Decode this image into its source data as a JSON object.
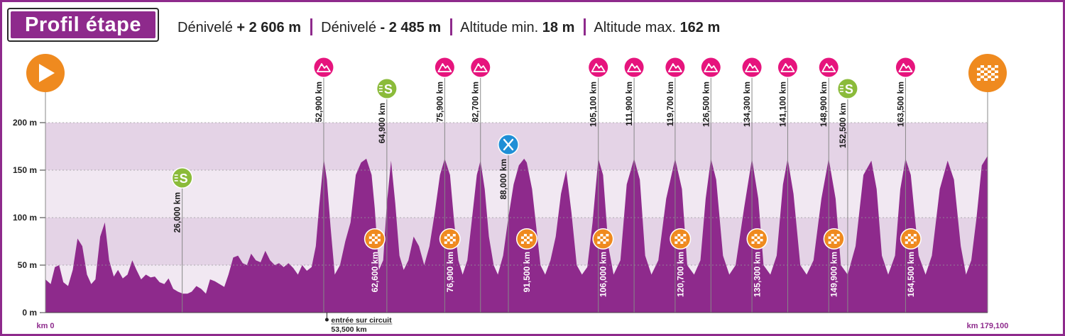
{
  "header": {
    "title": "Profil étape",
    "stats": [
      {
        "label": "Dénivelé",
        "value": "+ 2 606 m"
      },
      {
        "label": "Dénivelé",
        "value": "- 2 485 m"
      },
      {
        "label": "Altitude min.",
        "value": "18 m"
      },
      {
        "label": "Altitude max.",
        "value": "162 m"
      }
    ]
  },
  "colors": {
    "profile": "#8e2a8c",
    "band_dark": "#e4d3e6",
    "band_light": "#f1e8f2",
    "climb_marker": "#e6147d",
    "sprint_marker": "#8bbb3a",
    "finish_marker": "#ef8a1f",
    "feed_marker": "#1f8fd6"
  },
  "chart_data": {
    "type": "area",
    "x_unit": "km",
    "y_unit": "m",
    "xlim": [
      0,
      179.1
    ],
    "ylim": [
      0,
      200
    ],
    "yticks": [
      {
        "value": 0,
        "label": "0 m"
      },
      {
        "value": 50,
        "label": "50 m"
      },
      {
        "value": 100,
        "label": "100 m"
      },
      {
        "value": 150,
        "label": "150 m"
      },
      {
        "value": 200,
        "label": "200 m"
      }
    ],
    "start_label": "km 0",
    "end_label": "km 179,100",
    "circuit_entry": {
      "km": 53.5,
      "label": "entrée sur circuit",
      "km_label": "53,500 km"
    },
    "profile": [
      [
        0,
        35
      ],
      [
        1,
        30
      ],
      [
        1.8,
        48
      ],
      [
        2.6,
        50
      ],
      [
        3.4,
        32
      ],
      [
        4.3,
        28
      ],
      [
        5.2,
        45
      ],
      [
        6.1,
        78
      ],
      [
        7,
        70
      ],
      [
        7.9,
        40
      ],
      [
        8.7,
        30
      ],
      [
        9.5,
        35
      ],
      [
        10.4,
        80
      ],
      [
        11.3,
        95
      ],
      [
        12.1,
        55
      ],
      [
        13,
        38
      ],
      [
        13.8,
        45
      ],
      [
        14.7,
        36
      ],
      [
        15.6,
        40
      ],
      [
        16.5,
        55
      ],
      [
        17.3,
        45
      ],
      [
        18.2,
        35
      ],
      [
        19.1,
        40
      ],
      [
        20,
        37
      ],
      [
        20.8,
        38
      ],
      [
        21.7,
        32
      ],
      [
        22.6,
        30
      ],
      [
        23.4,
        36
      ],
      [
        24.3,
        25
      ],
      [
        25.2,
        22
      ],
      [
        26.1,
        20
      ],
      [
        27,
        20
      ],
      [
        27.8,
        22
      ],
      [
        28.7,
        28
      ],
      [
        29.6,
        25
      ],
      [
        30.5,
        20
      ],
      [
        31.3,
        35
      ],
      [
        32.2,
        33
      ],
      [
        33.1,
        30
      ],
      [
        34,
        27
      ],
      [
        34.8,
        40
      ],
      [
        35.7,
        58
      ],
      [
        36.6,
        60
      ],
      [
        37.5,
        52
      ],
      [
        38.3,
        50
      ],
      [
        39.1,
        62
      ],
      [
        40,
        55
      ],
      [
        40.9,
        53
      ],
      [
        41.8,
        65
      ],
      [
        42.7,
        55
      ],
      [
        43.6,
        50
      ],
      [
        44.4,
        52
      ],
      [
        45.3,
        48
      ],
      [
        46.2,
        52
      ],
      [
        47.1,
        47
      ],
      [
        48,
        40
      ],
      [
        48.8,
        50
      ],
      [
        49.7,
        44
      ],
      [
        50.6,
        48
      ],
      [
        51.4,
        70
      ],
      [
        52,
        110
      ],
      [
        52.9,
        162
      ],
      [
        53.5,
        140
      ],
      [
        54.2,
        90
      ],
      [
        55,
        40
      ],
      [
        56,
        50
      ],
      [
        57,
        75
      ],
      [
        58,
        95
      ],
      [
        59,
        145
      ],
      [
        60,
        158
      ],
      [
        61,
        162
      ],
      [
        62,
        145
      ],
      [
        62.6,
        110
      ],
      [
        63.4,
        45
      ],
      [
        64.2,
        55
      ],
      [
        64.9,
        115
      ],
      [
        65.7,
        160
      ],
      [
        66.5,
        115
      ],
      [
        67.3,
        60
      ],
      [
        68.1,
        45
      ],
      [
        69,
        55
      ],
      [
        70,
        80
      ],
      [
        71,
        70
      ],
      [
        72,
        50
      ],
      [
        73,
        70
      ],
      [
        74,
        105
      ],
      [
        75,
        145
      ],
      [
        75.9,
        162
      ],
      [
        76.9,
        145
      ],
      [
        77.7,
        95
      ],
      [
        78.5,
        55
      ],
      [
        79.3,
        40
      ],
      [
        80.2,
        55
      ],
      [
        81,
        95
      ],
      [
        82,
        145
      ],
      [
        82.7,
        160
      ],
      [
        83.5,
        130
      ],
      [
        84.3,
        80
      ],
      [
        85.2,
        50
      ],
      [
        86,
        40
      ],
      [
        87,
        60
      ],
      [
        88,
        100
      ],
      [
        89,
        135
      ],
      [
        90,
        155
      ],
      [
        91,
        162
      ],
      [
        91.5,
        158
      ],
      [
        92.5,
        130
      ],
      [
        93.3,
        90
      ],
      [
        94.1,
        50
      ],
      [
        95,
        40
      ],
      [
        96,
        55
      ],
      [
        97,
        80
      ],
      [
        98,
        125
      ],
      [
        99,
        150
      ],
      [
        100,
        105
      ],
      [
        101,
        50
      ],
      [
        102,
        40
      ],
      [
        103,
        48
      ],
      [
        104,
        95
      ],
      [
        105.1,
        162
      ],
      [
        106,
        145
      ],
      [
        107,
        70
      ],
      [
        108,
        40
      ],
      [
        109.3,
        55
      ],
      [
        110.5,
        135
      ],
      [
        111.9,
        162
      ],
      [
        113,
        140
      ],
      [
        114,
        60
      ],
      [
        115.2,
        40
      ],
      [
        116.5,
        55
      ],
      [
        118,
        120
      ],
      [
        119.7,
        162
      ],
      [
        121,
        130
      ],
      [
        122,
        50
      ],
      [
        123.3,
        40
      ],
      [
        124.5,
        55
      ],
      [
        125.5,
        120
      ],
      [
        126.5,
        162
      ],
      [
        127.5,
        140
      ],
      [
        128.8,
        60
      ],
      [
        130,
        40
      ],
      [
        131.2,
        50
      ],
      [
        132.8,
        110
      ],
      [
        134.3,
        162
      ],
      [
        135.5,
        120
      ],
      [
        136.5,
        50
      ],
      [
        137.8,
        40
      ],
      [
        139,
        60
      ],
      [
        140.2,
        135
      ],
      [
        141.1,
        162
      ],
      [
        142.2,
        125
      ],
      [
        143.5,
        50
      ],
      [
        144.7,
        40
      ],
      [
        146,
        55
      ],
      [
        147.5,
        120
      ],
      [
        148.9,
        162
      ],
      [
        150.2,
        120
      ],
      [
        151.2,
        50
      ],
      [
        152.5,
        40
      ],
      [
        154,
        70
      ],
      [
        155.5,
        145
      ],
      [
        157,
        160
      ],
      [
        158,
        130
      ],
      [
        159,
        60
      ],
      [
        160.2,
        40
      ],
      [
        161.5,
        60
      ],
      [
        162.5,
        130
      ],
      [
        163.5,
        162
      ],
      [
        164.5,
        145
      ],
      [
        166,
        60
      ],
      [
        167.3,
        40
      ],
      [
        168.5,
        60
      ],
      [
        170,
        130
      ],
      [
        171.5,
        160
      ],
      [
        172.7,
        140
      ],
      [
        174,
        70
      ],
      [
        175,
        40
      ],
      [
        176,
        55
      ],
      [
        177,
        100
      ],
      [
        178,
        155
      ],
      [
        179.1,
        165
      ]
    ]
  },
  "markers": [
    {
      "km": 0,
      "kind": "start",
      "icon": "play-icon"
    },
    {
      "km": 26.0,
      "kind": "sprint",
      "icon": "sprint-icon",
      "label": "26,000 km",
      "letter": "S"
    },
    {
      "km": 52.9,
      "kind": "climb",
      "icon": "mountain-icon",
      "label": "52,900 km"
    },
    {
      "km": 64.9,
      "kind": "sprint",
      "icon": "sprint-icon",
      "label": "64,900 km",
      "letter": "S"
    },
    {
      "km": 75.9,
      "kind": "climb",
      "icon": "mountain-icon",
      "label": "75,900 km"
    },
    {
      "km": 82.7,
      "kind": "climb",
      "icon": "mountain-icon",
      "label": "82,700 km"
    },
    {
      "km": 88.0,
      "kind": "feed",
      "icon": "fork-knife-icon",
      "label": "88,000 km"
    },
    {
      "km": 105.1,
      "kind": "climb",
      "icon": "mountain-icon",
      "label": "105,100 km"
    },
    {
      "km": 111.9,
      "kind": "climb",
      "icon": "mountain-icon",
      "label": "111,900 km"
    },
    {
      "km": 119.7,
      "kind": "climb",
      "icon": "mountain-icon",
      "label": "119,700 km"
    },
    {
      "km": 126.5,
      "kind": "climb",
      "icon": "mountain-icon",
      "label": "126,500 km"
    },
    {
      "km": 134.3,
      "kind": "climb",
      "icon": "mountain-icon",
      "label": "134,300 km"
    },
    {
      "km": 141.1,
      "kind": "climb",
      "icon": "mountain-icon",
      "label": "141,100 km"
    },
    {
      "km": 148.9,
      "kind": "climb",
      "icon": "mountain-icon",
      "label": "148,900 km"
    },
    {
      "km": 152.5,
      "kind": "sprint",
      "icon": "sprint-icon",
      "label": "152,500 km",
      "letter": "S"
    },
    {
      "km": 163.5,
      "kind": "climb",
      "icon": "mountain-icon",
      "label": "163,500 km"
    },
    {
      "km": 179.1,
      "kind": "finish",
      "icon": "checkered-flag-icon"
    }
  ],
  "circuit_passes": [
    {
      "km": 62.6,
      "label": "62,600 km"
    },
    {
      "km": 76.9,
      "label": "76,900 km"
    },
    {
      "km": 91.5,
      "label": "91,500 km"
    },
    {
      "km": 106.0,
      "label": "106,000 km"
    },
    {
      "km": 120.7,
      "label": "120,700 km"
    },
    {
      "km": 135.3,
      "label": "135,300 km"
    },
    {
      "km": 149.9,
      "label": "149,900 km"
    },
    {
      "km": 164.5,
      "label": "164,500 km"
    }
  ]
}
